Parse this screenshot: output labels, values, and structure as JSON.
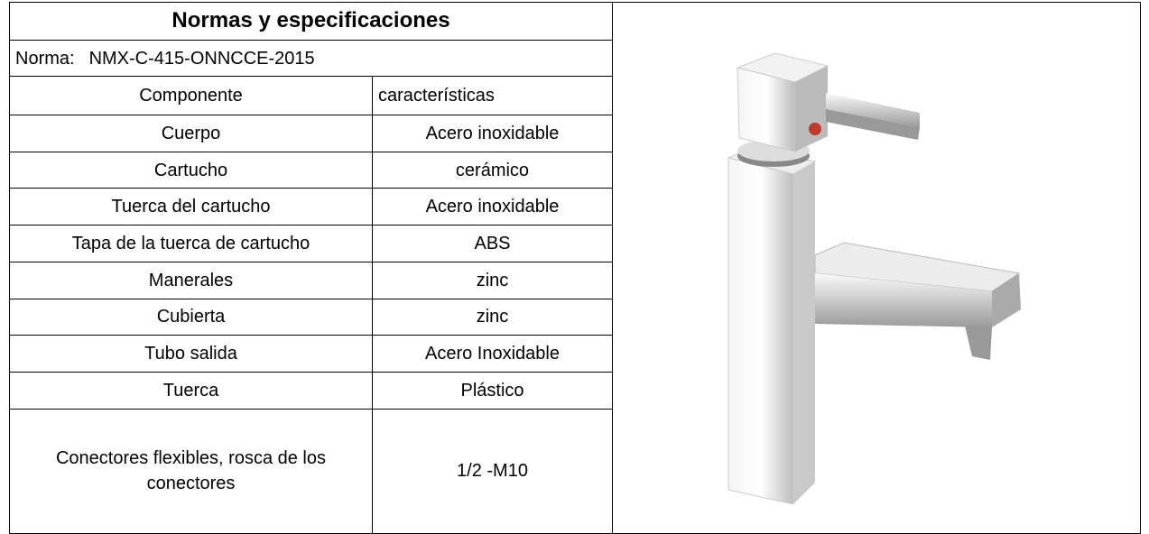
{
  "header": {
    "title": "Normas y especificaciones"
  },
  "norma": {
    "label": "Norma:",
    "value": "NMX-C-415-ONNCCE-2015"
  },
  "table": {
    "header": [
      "Componente",
      "características"
    ],
    "rows": [
      [
        "Cuerpo",
        "Acero inoxidable"
      ],
      [
        "Cartucho",
        "cerámico"
      ],
      [
        "Tuerca del cartucho",
        "Acero inoxidable"
      ],
      [
        "Tapa de la tuerca de cartucho",
        "ABS"
      ],
      [
        "Manerales",
        "zinc"
      ],
      [
        "Cubierta",
        "zinc"
      ],
      [
        "Tubo salida",
        "Acero Inoxidable"
      ],
      [
        "Tuerca",
        "Plástico"
      ],
      [
        "Conectores flexibles, rosca de los conectores",
        "1/2 -M10"
      ]
    ]
  }
}
